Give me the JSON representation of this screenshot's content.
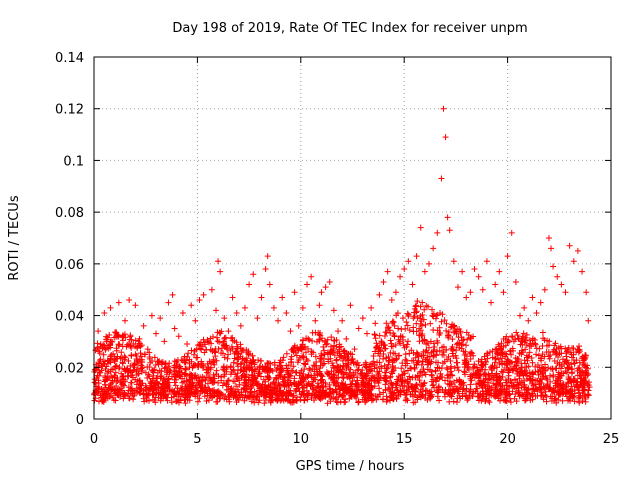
{
  "chart_data": {
    "type": "scatter",
    "title": "Day 198 of 2019, Rate Of TEC Index for receiver unpm",
    "xlabel": "GPS time / hours",
    "ylabel": "ROTI / TECUs",
    "xlim": [
      0,
      25
    ],
    "ylim": [
      0,
      0.14
    ],
    "xticks": [
      0,
      5,
      10,
      15,
      20,
      25
    ],
    "yticks": [
      0,
      0.02,
      0.04,
      0.06,
      0.08,
      0.1,
      0.12,
      0.14
    ],
    "xtick_labels": [
      "0",
      "5",
      "10",
      "15",
      "20",
      "25"
    ],
    "ytick_labels": [
      "0",
      "0.02",
      "0.04",
      "0.06",
      "0.08",
      "0.1",
      "0.12",
      "0.14"
    ],
    "grid": true,
    "marker": "+",
    "color": "#ff0000",
    "series": [
      {
        "name": "ROTI",
        "note": "dense band of thousands of points; representative subset listed",
        "x": [
          0.1,
          0.2,
          0.3,
          0.5,
          0.6,
          0.8,
          1.0,
          1.2,
          1.4,
          1.5,
          1.7,
          1.9,
          2.0,
          2.2,
          2.4,
          2.6,
          2.8,
          3.0,
          3.2,
          3.4,
          3.6,
          3.8,
          3.9,
          4.1,
          4.3,
          4.5,
          4.7,
          4.9,
          5.1,
          5.3,
          5.5,
          5.7,
          5.9,
          6.0,
          6.1,
          6.3,
          6.5,
          6.7,
          6.9,
          7.1,
          7.3,
          7.5,
          7.7,
          7.9,
          8.1,
          8.3,
          8.4,
          8.5,
          8.7,
          8.9,
          9.1,
          9.3,
          9.5,
          9.7,
          9.9,
          10.1,
          10.3,
          10.5,
          10.7,
          10.9,
          11.0,
          11.2,
          11.4,
          11.6,
          11.8,
          12.0,
          12.2,
          12.4,
          12.6,
          12.8,
          13.0,
          13.2,
          13.4,
          13.6,
          13.8,
          14.0,
          14.2,
          14.4,
          14.6,
          14.8,
          15.0,
          15.2,
          15.4,
          15.6,
          15.8,
          16.0,
          16.2,
          16.4,
          16.6,
          16.8,
          16.9,
          17.0,
          17.1,
          17.2,
          17.4,
          17.6,
          17.8,
          18.0,
          18.2,
          18.4,
          18.6,
          18.8,
          19.0,
          19.2,
          19.4,
          19.6,
          19.8,
          20.0,
          20.2,
          20.4,
          20.6,
          20.8,
          21.0,
          21.2,
          21.4,
          21.6,
          21.8,
          22.0,
          22.1,
          22.2,
          22.4,
          22.6,
          22.8,
          23.0,
          23.2,
          23.4,
          23.6,
          23.8,
          23.9
        ],
        "y": [
          0.021,
          0.034,
          0.028,
          0.041,
          0.03,
          0.043,
          0.024,
          0.045,
          0.032,
          0.038,
          0.046,
          0.029,
          0.044,
          0.031,
          0.036,
          0.027,
          0.04,
          0.033,
          0.039,
          0.03,
          0.045,
          0.048,
          0.035,
          0.032,
          0.041,
          0.029,
          0.044,
          0.038,
          0.046,
          0.048,
          0.03,
          0.05,
          0.042,
          0.061,
          0.057,
          0.039,
          0.034,
          0.047,
          0.041,
          0.036,
          0.043,
          0.052,
          0.056,
          0.039,
          0.047,
          0.058,
          0.063,
          0.052,
          0.043,
          0.038,
          0.047,
          0.041,
          0.034,
          0.049,
          0.036,
          0.043,
          0.052,
          0.055,
          0.038,
          0.044,
          0.049,
          0.051,
          0.053,
          0.042,
          0.034,
          0.038,
          0.031,
          0.044,
          0.027,
          0.035,
          0.039,
          0.033,
          0.043,
          0.037,
          0.048,
          0.053,
          0.057,
          0.046,
          0.049,
          0.055,
          0.058,
          0.061,
          0.052,
          0.063,
          0.074,
          0.057,
          0.06,
          0.066,
          0.072,
          0.093,
          0.12,
          0.109,
          0.078,
          0.073,
          0.061,
          0.051,
          0.057,
          0.047,
          0.049,
          0.058,
          0.055,
          0.05,
          0.061,
          0.045,
          0.052,
          0.057,
          0.049,
          0.063,
          0.072,
          0.053,
          0.04,
          0.043,
          0.038,
          0.047,
          0.041,
          0.045,
          0.05,
          0.07,
          0.066,
          0.059,
          0.055,
          0.052,
          0.049,
          0.067,
          0.061,
          0.065,
          0.057,
          0.049,
          0.038
        ]
      }
    ]
  }
}
